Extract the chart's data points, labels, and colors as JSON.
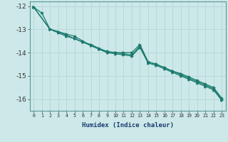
{
  "xlabel": "Humidex (Indice chaleur)",
  "ylabel": "",
  "xlim": [
    -0.5,
    23.5
  ],
  "ylim": [
    -16.5,
    -11.8
  ],
  "yticks": [
    -16,
    -15,
    -14,
    -13,
    -12
  ],
  "xticks": [
    0,
    1,
    2,
    3,
    4,
    5,
    6,
    7,
    8,
    9,
    10,
    11,
    12,
    13,
    14,
    15,
    16,
    17,
    18,
    19,
    20,
    21,
    22,
    23
  ],
  "xtick_labels": [
    "0",
    "1",
    "2",
    "3",
    "4",
    "5",
    "6",
    "7",
    "8",
    "9",
    "10",
    "11",
    "12",
    "13",
    "14",
    "15",
    "16",
    "17",
    "18",
    "19",
    "20",
    "21",
    "22",
    "23"
  ],
  "bg_color": "#cce8e8",
  "line_color": "#1a7a6e",
  "grid_color": "#b8d8d8",
  "line1_x": [
    0,
    1,
    2,
    3,
    4,
    5,
    6,
    7,
    8,
    9,
    10,
    11,
    12,
    13,
    14,
    15,
    16,
    17,
    18,
    19,
    20,
    21,
    22,
    23
  ],
  "line1_y": [
    -12.05,
    -12.3,
    -13.0,
    -13.1,
    -13.2,
    -13.3,
    -13.5,
    -13.7,
    -13.85,
    -14.0,
    -14.0,
    -14.0,
    -14.0,
    -13.65,
    -14.4,
    -14.5,
    -14.65,
    -14.8,
    -14.9,
    -15.05,
    -15.2,
    -15.35,
    -15.5,
    -15.95
  ],
  "line2_x": [
    0,
    2,
    3,
    4,
    5,
    6,
    7,
    8,
    9,
    10,
    11,
    12,
    13,
    14,
    15,
    16,
    17,
    18,
    19,
    20,
    21,
    22,
    23
  ],
  "line2_y": [
    -12.05,
    -13.0,
    -13.1,
    -13.25,
    -13.4,
    -13.55,
    -13.65,
    -13.82,
    -13.95,
    -14.0,
    -14.05,
    -14.1,
    -13.72,
    -14.4,
    -14.5,
    -14.65,
    -14.8,
    -14.95,
    -15.1,
    -15.25,
    -15.4,
    -15.55,
    -16.0
  ],
  "line3_x": [
    0,
    2,
    3,
    4,
    5,
    6,
    7,
    8,
    9,
    10,
    11,
    12,
    13,
    14,
    15,
    16,
    17,
    18,
    19,
    20,
    21,
    22,
    23
  ],
  "line3_y": [
    -12.05,
    -13.0,
    -13.15,
    -13.3,
    -13.4,
    -13.55,
    -13.7,
    -13.85,
    -14.0,
    -14.05,
    -14.1,
    -14.15,
    -13.78,
    -14.45,
    -14.55,
    -14.7,
    -14.85,
    -15.0,
    -15.15,
    -15.3,
    -15.45,
    -15.6,
    -16.05
  ]
}
